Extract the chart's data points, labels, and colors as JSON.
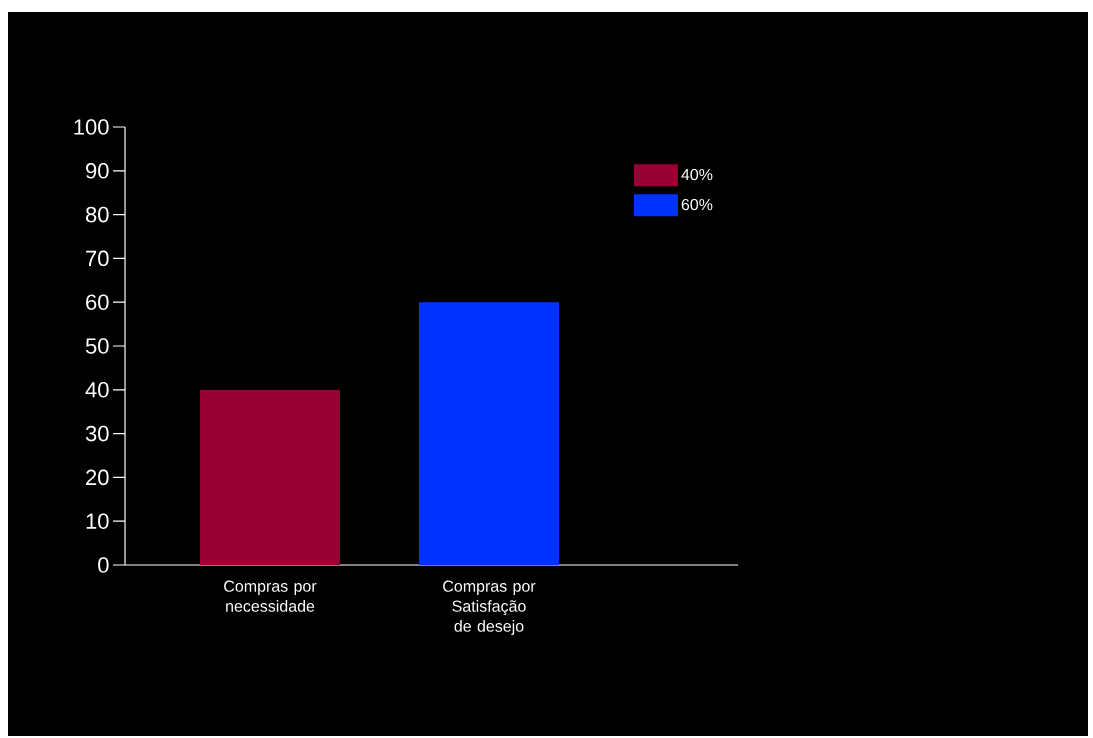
{
  "chart_data": {
    "type": "bar",
    "categories": [
      "Compras por necessidade",
      "Compras por Satisfação de desejo"
    ],
    "series": [
      {
        "name": "40%",
        "color": "#990033",
        "values": [
          40,
          null
        ]
      },
      {
        "name": "60%",
        "color": "#0033ff",
        "values": [
          null,
          60
        ]
      }
    ],
    "ylim": [
      0,
      100
    ],
    "yticks": [
      0,
      10,
      20,
      30,
      40,
      50,
      60,
      70,
      80,
      90,
      100
    ],
    "grid": false,
    "legend": "top right"
  }
}
